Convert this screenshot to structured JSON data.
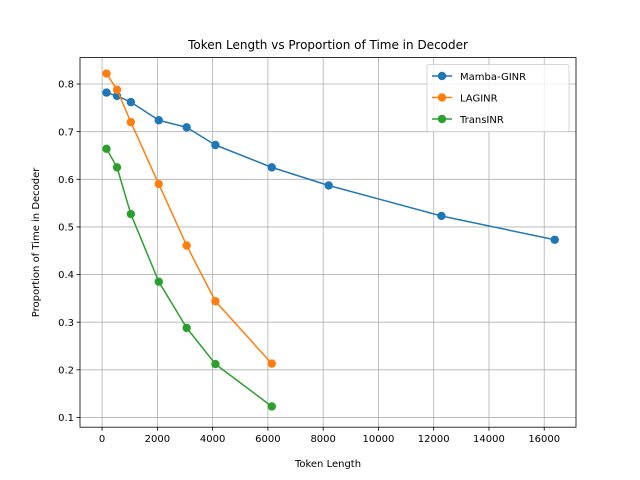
{
  "chart_data": {
    "type": "line",
    "title": "Token Length vs Proportion of Time in Decoder",
    "xlabel": "Token Length",
    "ylabel": "Proportion of Time in Decoder",
    "xlim": [
      -800,
      17150
    ],
    "ylim": [
      0.0795,
      0.8555
    ],
    "xticks": [
      0,
      2000,
      4000,
      6000,
      8000,
      10000,
      12000,
      14000,
      16000
    ],
    "yticks": [
      0.1,
      0.2,
      0.3,
      0.4,
      0.5,
      0.6,
      0.7,
      0.8
    ],
    "grid": true,
    "legend_position": "top-right",
    "series": [
      {
        "name": "Mamba-GINR",
        "color": "#1f77b4",
        "x": [
          160,
          540,
          1040,
          2050,
          3060,
          4100,
          6140,
          8200,
          12280,
          16380
        ],
        "y": [
          0.782,
          0.775,
          0.762,
          0.724,
          0.709,
          0.672,
          0.625,
          0.587,
          0.523,
          0.473
        ]
      },
      {
        "name": "LAGINR",
        "color": "#ff7f0e",
        "x": [
          160,
          540,
          1040,
          2050,
          3060,
          4100,
          6140
        ],
        "y": [
          0.822,
          0.788,
          0.72,
          0.59,
          0.461,
          0.344,
          0.213
        ]
      },
      {
        "name": "TransINR",
        "color": "#2ca02c",
        "x": [
          160,
          540,
          1040,
          2050,
          3060,
          4100,
          6140
        ],
        "y": [
          0.664,
          0.625,
          0.527,
          0.385,
          0.288,
          0.212,
          0.123
        ]
      }
    ]
  }
}
